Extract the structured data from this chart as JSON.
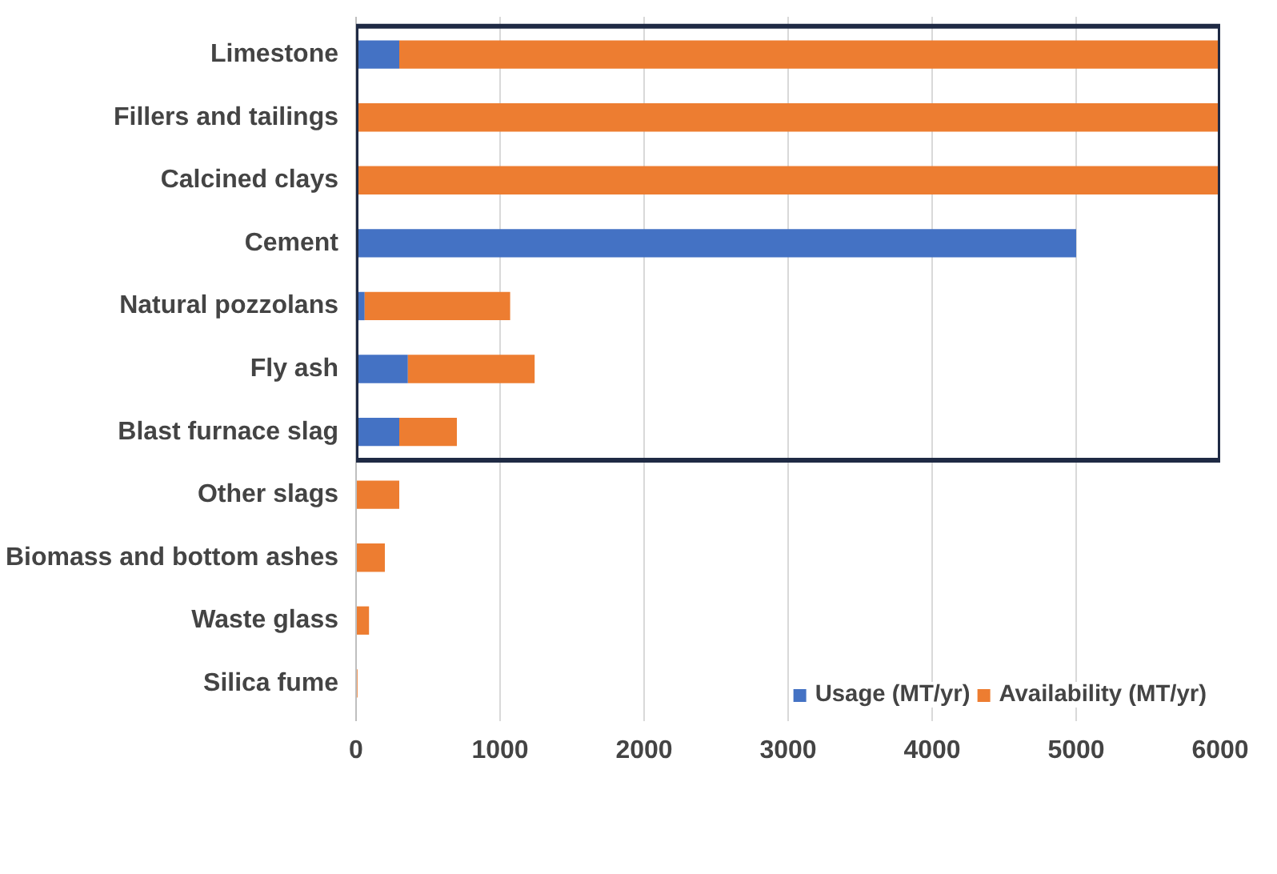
{
  "chart_data": {
    "type": "bar",
    "orientation": "horizontal",
    "stacked": true,
    "categories": [
      "Limestone",
      "Fillers and tailings",
      "Calcined clays",
      "Cement",
      "Natural pozzolans",
      "Fly ash",
      "Blast furnace slag",
      "Other slags",
      "Biomass and bottom ashes",
      "Waste glass",
      "Silica fume"
    ],
    "series": [
      {
        "name": "Usage (MT/yr)",
        "color": "#4472c4",
        "values": [
          300,
          0,
          0,
          5000,
          60,
          360,
          300,
          0,
          0,
          0,
          0
        ]
      },
      {
        "name": "Availability (MT/yr)",
        "color": "#ed7d31",
        "values": [
          5700,
          6000,
          6000,
          0,
          1010,
          880,
          400,
          300,
          200,
          90,
          10
        ]
      }
    ],
    "xlim": [
      0,
      6000
    ],
    "xticks": [
      0,
      1000,
      2000,
      3000,
      4000,
      5000,
      6000
    ],
    "grid": "x",
    "legend": "bottom right"
  }
}
